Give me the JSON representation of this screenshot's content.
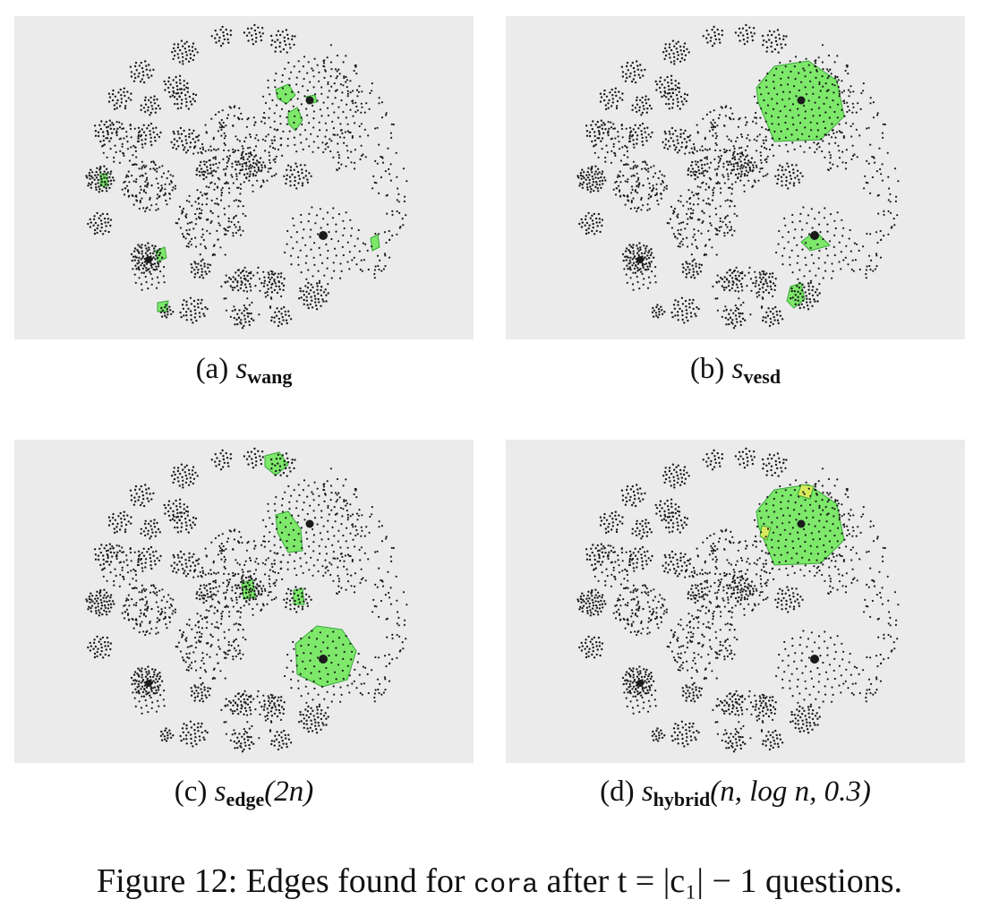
{
  "colors": {
    "background": "#ebebeb",
    "node": "#1a1a1a",
    "highlight_fill": "#7de86a",
    "highlight_stroke": "#3aa63a",
    "highlight_yellow": "#d9ea5a"
  },
  "panels": [
    {
      "id": "a",
      "label": "(a)",
      "var": "s",
      "sub": "wang",
      "args": ""
    },
    {
      "id": "b",
      "label": "(b)",
      "var": "s",
      "sub": "vesd",
      "args": ""
    },
    {
      "id": "c",
      "label": "(c)",
      "var": "s",
      "sub": "edge",
      "args": "(2n)"
    },
    {
      "id": "d",
      "label": "(d)",
      "var": "s",
      "sub": "hybrid",
      "args": "(n, log n, 0.3)"
    }
  ],
  "figure": {
    "caption_prefix": "Figure 12: Edges found for",
    "dataset": "cora",
    "caption_suffix": "after t = |c₁| − 1 questions."
  }
}
